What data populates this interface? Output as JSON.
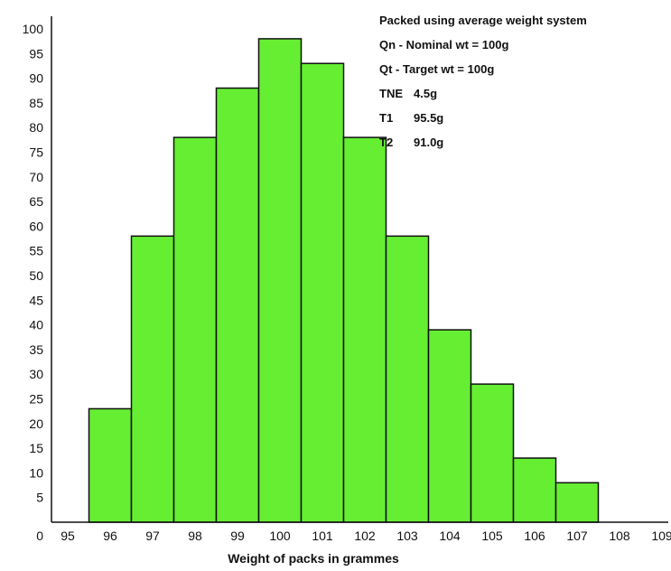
{
  "chart_data": {
    "type": "bar",
    "title": "",
    "xlabel": "Weight of packs in grammes",
    "ylabel": "",
    "grid": false,
    "bar_color": "#66ee33",
    "categories": [
      "96",
      "97",
      "98",
      "99",
      "100",
      "101",
      "102",
      "103",
      "104",
      "105",
      "106",
      "107"
    ],
    "values": [
      23,
      58,
      78,
      88,
      98,
      93,
      78,
      58,
      39,
      28,
      13,
      8
    ],
    "x_ticks": [
      "95",
      "96",
      "97",
      "98",
      "99",
      "100",
      "101",
      "102",
      "103",
      "104",
      "105",
      "106",
      "107",
      "108",
      "109"
    ],
    "y_ticks": [
      "0",
      "5",
      "10",
      "15",
      "20",
      "25",
      "30",
      "35",
      "40",
      "45",
      "50",
      "55",
      "60",
      "65",
      "70",
      "75",
      "80",
      "85",
      "90",
      "95",
      "100"
    ],
    "ylim": [
      0,
      100
    ],
    "annotations": [
      {
        "label": "Packed using average weight system",
        "value": ""
      },
      {
        "label": "Qn - Nominal wt = 100g",
        "value": ""
      },
      {
        "label": "Qt - Target wt =  100g",
        "value": ""
      },
      {
        "label": "TNE",
        "value": "4.5g"
      },
      {
        "label": "T1",
        "value": "95.5g"
      },
      {
        "label": "T2",
        "value": "91.0g"
      }
    ]
  }
}
